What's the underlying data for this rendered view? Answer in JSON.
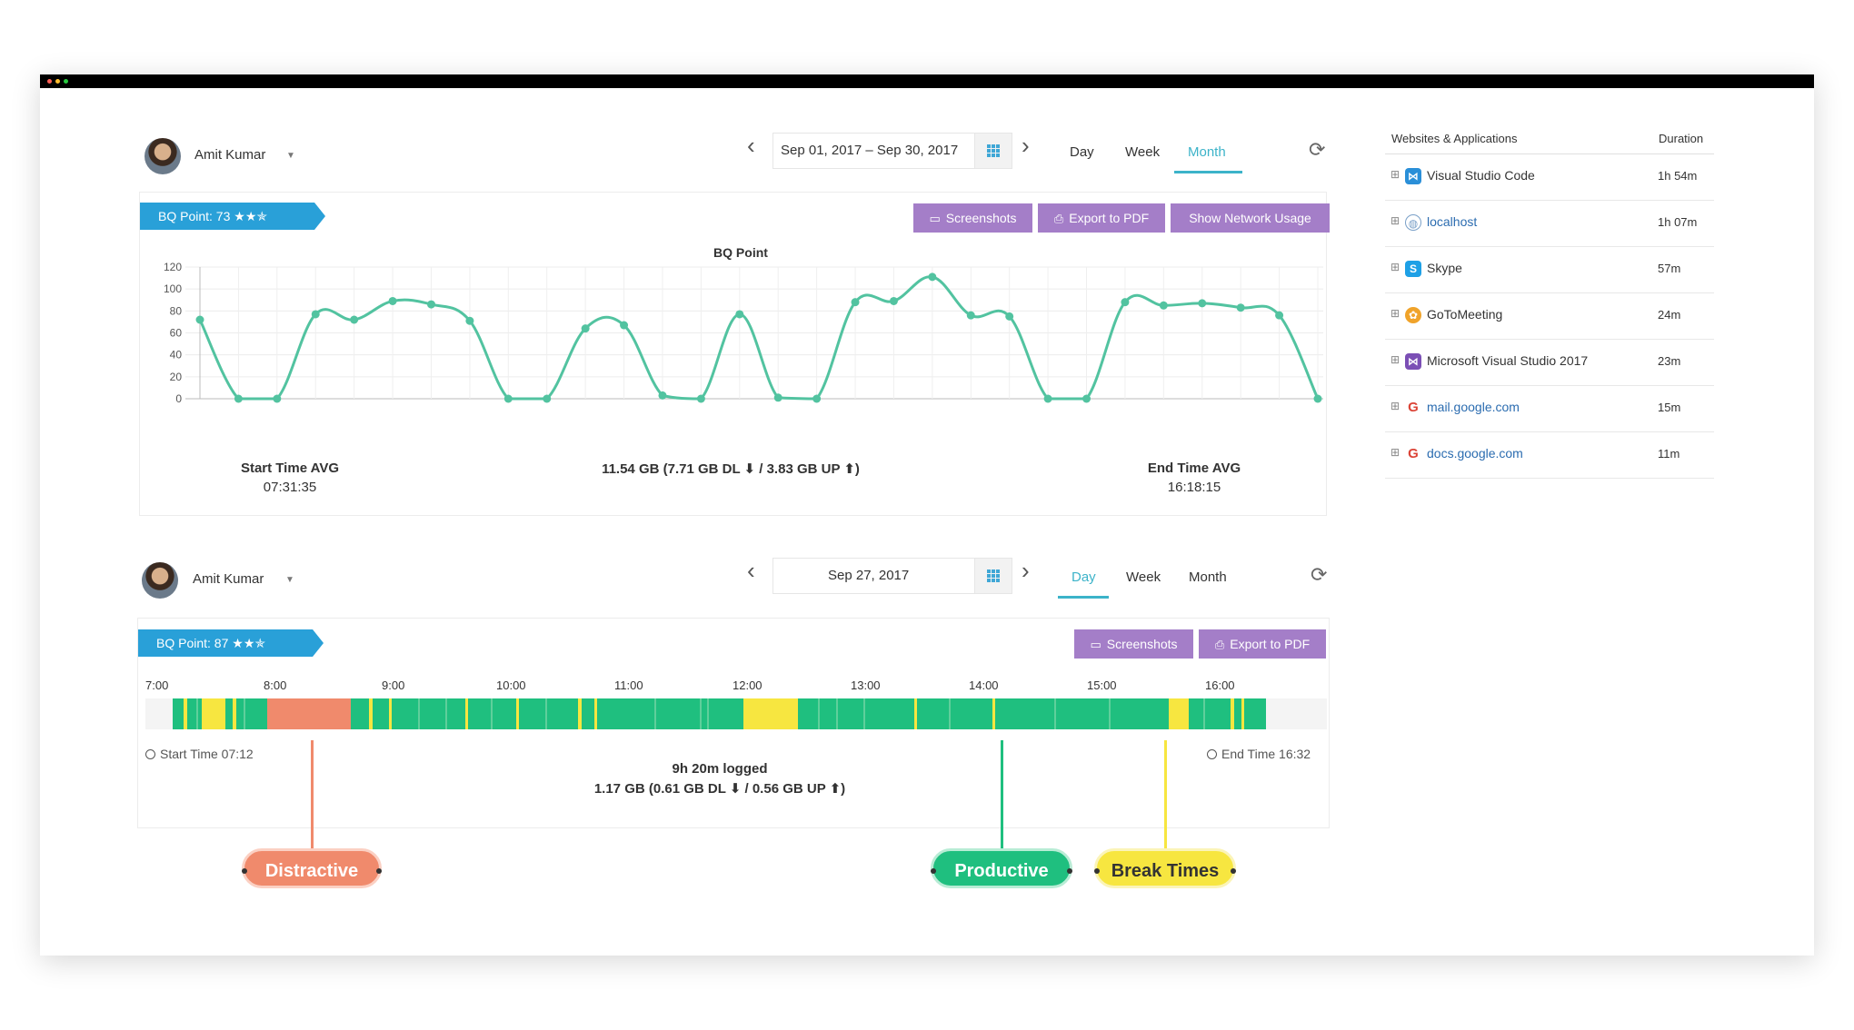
{
  "colors": {
    "accent": "#3cb3c9",
    "badge": "#29a0d8",
    "button": "#a47ec8",
    "line": "#52c3a0",
    "productive": "#1fbf7f",
    "distractive": "#f08a6c",
    "break": "#f7e640"
  },
  "top": {
    "user": "Amit Kumar",
    "date_range": "Sep 01, 2017 – Sep 30, 2017",
    "tabs": [
      "Day",
      "Week",
      "Month"
    ],
    "active_tab": "Month",
    "bq_point": "BQ Point: 73",
    "stars": "★★✯",
    "buttons": {
      "screenshots": "Screenshots",
      "export": "Export to PDF",
      "network": "Show Network Usage"
    },
    "stats": {
      "start_label": "Start Time AVG",
      "start_value": "07:31:35",
      "network": "11.54 GB (7.71 GB DL ⬇ / 3.83 GB UP ⬆)",
      "end_label": "End Time AVG",
      "end_value": "16:18:15"
    }
  },
  "chart_data": {
    "type": "line",
    "title": "BQ Point",
    "xlabel": "",
    "ylabel": "",
    "ylim": [
      0,
      120
    ],
    "yticks": [
      0,
      20,
      40,
      60,
      80,
      100,
      120
    ],
    "grid": true,
    "series": [
      {
        "values": [
          72,
          0,
          0,
          77,
          72,
          89,
          86,
          71,
          0,
          0,
          64,
          67,
          3,
          0,
          77,
          1,
          0,
          88,
          89,
          111,
          76,
          75,
          0,
          0,
          88,
          85,
          87,
          83,
          76,
          0
        ]
      }
    ]
  },
  "bottom": {
    "user": "Amit Kumar",
    "date": "Sep 27, 2017",
    "tabs": [
      "Day",
      "Week",
      "Month"
    ],
    "active_tab": "Day",
    "bq_point": "BQ Point: 87",
    "stars": "★★✯",
    "buttons": {
      "screenshots": "Screenshots",
      "export": "Export to PDF"
    },
    "hours": [
      "7:00",
      "8:00",
      "9:00",
      "10:00",
      "11:00",
      "12:00",
      "13:00",
      "14:00",
      "15:00",
      "16:00"
    ],
    "start_time": "Start Time 07:12",
    "end_time": "End Time 16:32",
    "logged": "9h 20m logged",
    "network": "1.17 GB (0.61 GB DL ⬇ / 0.56 GB UP ⬆)"
  },
  "legend_pills": {
    "distractive": "Distractive",
    "productive": "Productive",
    "break": "Break Times"
  },
  "sidebar": {
    "col_name": "Websites & Applications",
    "col_duration": "Duration",
    "rows": [
      {
        "name": "Visual Studio Code",
        "duration": "1h 54m",
        "icon": "vscode-icon",
        "link": false
      },
      {
        "name": "localhost",
        "duration": "1h 07m",
        "icon": "globe-icon",
        "link": true
      },
      {
        "name": "Skype",
        "duration": "57m",
        "icon": "skype-icon",
        "link": false
      },
      {
        "name": "GoToMeeting",
        "duration": "24m",
        "icon": "gotomeeting-icon",
        "link": false
      },
      {
        "name": "Microsoft Visual Studio 2017",
        "duration": "23m",
        "icon": "visualstudio-icon",
        "link": false
      },
      {
        "name": "mail.google.com",
        "duration": "15m",
        "icon": "google-icon",
        "link": true
      },
      {
        "name": "docs.google.com",
        "duration": "11m",
        "icon": "google-icon",
        "link": true
      }
    ]
  }
}
